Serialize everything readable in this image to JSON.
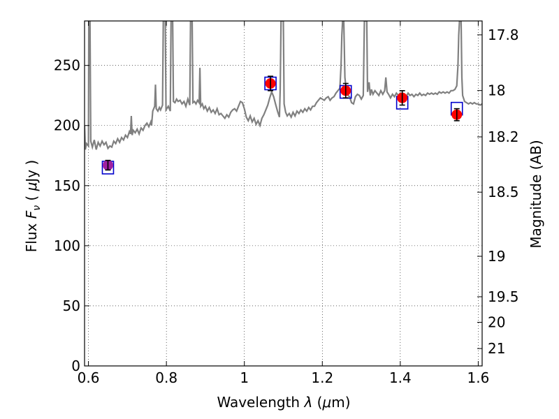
{
  "chart_data": {
    "type": "scatter",
    "xlabel": "Wavelength  λ (μm)",
    "ylabel": "Flux  F_ν  ( μJy )",
    "ylabel_right": "Magnitude (AB)",
    "xlim": [
      0.59,
      1.61
    ],
    "ylim": [
      0,
      287
    ],
    "grid": true,
    "x_ticks": [
      0.6,
      0.8,
      1.0,
      1.2,
      1.4,
      1.6
    ],
    "x_tick_labels": [
      "0.6",
      "0.8",
      "1",
      "1.2",
      "1.4",
      "1.6"
    ],
    "y_ticks": [
      0,
      50,
      100,
      150,
      200,
      250
    ],
    "y_tick_labels": [
      "0",
      "50",
      "100",
      "150",
      "200",
      "250"
    ],
    "right_ticks_mag": [
      17.8,
      18,
      18.2,
      18.5,
      19,
      19.5,
      20,
      21
    ],
    "right_tick_labels": [
      "17.8",
      "18",
      "18.2",
      "18.5",
      "19",
      "19.5",
      "20",
      "21"
    ],
    "colors": {
      "spectrum": "#808080",
      "observed": "#ff0000",
      "observed_first": "#a020a0",
      "model_box": "#0000cc",
      "errorbar": "#000000"
    },
    "spectrum": [
      [
        0.59,
        200
      ],
      [
        0.592,
        180
      ],
      [
        0.595,
        185
      ],
      [
        0.6,
        183
      ],
      [
        0.601,
        287
      ],
      [
        0.604,
        287
      ],
      [
        0.606,
        187
      ],
      [
        0.61,
        182
      ],
      [
        0.615,
        188
      ],
      [
        0.62,
        180
      ],
      [
        0.625,
        186
      ],
      [
        0.63,
        183
      ],
      [
        0.635,
        187
      ],
      [
        0.64,
        184
      ],
      [
        0.645,
        186
      ],
      [
        0.65,
        181
      ],
      [
        0.655,
        183
      ],
      [
        0.66,
        182
      ],
      [
        0.665,
        187
      ],
      [
        0.67,
        185
      ],
      [
        0.675,
        189
      ],
      [
        0.68,
        186
      ],
      [
        0.685,
        190
      ],
      [
        0.69,
        188
      ],
      [
        0.695,
        192
      ],
      [
        0.7,
        190
      ],
      [
        0.705,
        195
      ],
      [
        0.708,
        193
      ],
      [
        0.71,
        208
      ],
      [
        0.712,
        192
      ],
      [
        0.715,
        196
      ],
      [
        0.72,
        194
      ],
      [
        0.725,
        197
      ],
      [
        0.73,
        193
      ],
      [
        0.735,
        198
      ],
      [
        0.74,
        196
      ],
      [
        0.745,
        200
      ],
      [
        0.75,
        202
      ],
      [
        0.755,
        199
      ],
      [
        0.76,
        203
      ],
      [
        0.762,
        200
      ],
      [
        0.765,
        212
      ],
      [
        0.77,
        216
      ],
      [
        0.772,
        234
      ],
      [
        0.774,
        214
      ],
      [
        0.778,
        212
      ],
      [
        0.782,
        215
      ],
      [
        0.785,
        213
      ],
      [
        0.79,
        217
      ],
      [
        0.792,
        287
      ],
      [
        0.797,
        287
      ],
      [
        0.799,
        213
      ],
      [
        0.805,
        216
      ],
      [
        0.81,
        212
      ],
      [
        0.812,
        287
      ],
      [
        0.816,
        287
      ],
      [
        0.818,
        220
      ],
      [
        0.822,
        219
      ],
      [
        0.826,
        222
      ],
      [
        0.83,
        220
      ],
      [
        0.835,
        221
      ],
      [
        0.84,
        218
      ],
      [
        0.845,
        220
      ],
      [
        0.85,
        216
      ],
      [
        0.855,
        222
      ],
      [
        0.86,
        217
      ],
      [
        0.862,
        287
      ],
      [
        0.866,
        287
      ],
      [
        0.868,
        219
      ],
      [
        0.872,
        220
      ],
      [
        0.876,
        218
      ],
      [
        0.88,
        221
      ],
      [
        0.884,
        219
      ],
      [
        0.886,
        248
      ],
      [
        0.888,
        216
      ],
      [
        0.892,
        218
      ],
      [
        0.896,
        214
      ],
      [
        0.9,
        216
      ],
      [
        0.905,
        212
      ],
      [
        0.91,
        215
      ],
      [
        0.915,
        211
      ],
      [
        0.92,
        213
      ],
      [
        0.925,
        210
      ],
      [
        0.93,
        214
      ],
      [
        0.935,
        209
      ],
      [
        0.94,
        210
      ],
      [
        0.945,
        208
      ],
      [
        0.95,
        206
      ],
      [
        0.955,
        209
      ],
      [
        0.96,
        207
      ],
      [
        0.965,
        211
      ],
      [
        0.97,
        213
      ],
      [
        0.975,
        214
      ],
      [
        0.98,
        212
      ],
      [
        0.985,
        216
      ],
      [
        0.99,
        220
      ],
      [
        0.995,
        219
      ],
      [
        1.0,
        214
      ],
      [
        1.005,
        207
      ],
      [
        1.01,
        204
      ],
      [
        1.015,
        208
      ],
      [
        1.02,
        203
      ],
      [
        1.025,
        206
      ],
      [
        1.03,
        201
      ],
      [
        1.035,
        204
      ],
      [
        1.04,
        200
      ],
      [
        1.045,
        206
      ],
      [
        1.05,
        209
      ],
      [
        1.055,
        213
      ],
      [
        1.06,
        217
      ],
      [
        1.065,
        223
      ],
      [
        1.07,
        228
      ],
      [
        1.075,
        224
      ],
      [
        1.08,
        218
      ],
      [
        1.085,
        212
      ],
      [
        1.09,
        207
      ],
      [
        1.092,
        230
      ],
      [
        1.094,
        287
      ],
      [
        1.1,
        287
      ],
      [
        1.102,
        218
      ],
      [
        1.106,
        211
      ],
      [
        1.11,
        208
      ],
      [
        1.115,
        210
      ],
      [
        1.12,
        207
      ],
      [
        1.125,
        211
      ],
      [
        1.13,
        208
      ],
      [
        1.135,
        212
      ],
      [
        1.14,
        210
      ],
      [
        1.145,
        213
      ],
      [
        1.15,
        211
      ],
      [
        1.155,
        214
      ],
      [
        1.16,
        212
      ],
      [
        1.165,
        215
      ],
      [
        1.17,
        213
      ],
      [
        1.175,
        216
      ],
      [
        1.18,
        216
      ],
      [
        1.185,
        219
      ],
      [
        1.19,
        221
      ],
      [
        1.195,
        223
      ],
      [
        1.2,
        222
      ],
      [
        1.205,
        221
      ],
      [
        1.21,
        223
      ],
      [
        1.215,
        224
      ],
      [
        1.22,
        221
      ],
      [
        1.225,
        223
      ],
      [
        1.23,
        224
      ],
      [
        1.235,
        227
      ],
      [
        1.24,
        229
      ],
      [
        1.245,
        231
      ],
      [
        1.248,
        250
      ],
      [
        1.25,
        275
      ],
      [
        1.252,
        287
      ],
      [
        1.255,
        287
      ],
      [
        1.258,
        240
      ],
      [
        1.262,
        228
      ],
      [
        1.266,
        225
      ],
      [
        1.27,
        224
      ],
      [
        1.275,
        219
      ],
      [
        1.28,
        218
      ],
      [
        1.285,
        224
      ],
      [
        1.29,
        226
      ],
      [
        1.295,
        225
      ],
      [
        1.3,
        222
      ],
      [
        1.305,
        225
      ],
      [
        1.308,
        287
      ],
      [
        1.314,
        287
      ],
      [
        1.316,
        228
      ],
      [
        1.32,
        236
      ],
      [
        1.323,
        225
      ],
      [
        1.326,
        230
      ],
      [
        1.33,
        226
      ],
      [
        1.335,
        229
      ],
      [
        1.34,
        227
      ],
      [
        1.345,
        225
      ],
      [
        1.35,
        229
      ],
      [
        1.355,
        226
      ],
      [
        1.36,
        229
      ],
      [
        1.363,
        240
      ],
      [
        1.366,
        228
      ],
      [
        1.37,
        226
      ],
      [
        1.375,
        223
      ],
      [
        1.38,
        226
      ],
      [
        1.385,
        224
      ],
      [
        1.39,
        227
      ],
      [
        1.395,
        225
      ],
      [
        1.4,
        227
      ],
      [
        1.405,
        225
      ],
      [
        1.41,
        226
      ],
      [
        1.415,
        224
      ],
      [
        1.42,
        227
      ],
      [
        1.425,
        225
      ],
      [
        1.43,
        226
      ],
      [
        1.435,
        224
      ],
      [
        1.44,
        226
      ],
      [
        1.445,
        225
      ],
      [
        1.45,
        227
      ],
      [
        1.455,
        225
      ],
      [
        1.46,
        226
      ],
      [
        1.465,
        225
      ],
      [
        1.47,
        227
      ],
      [
        1.475,
        226
      ],
      [
        1.48,
        227
      ],
      [
        1.485,
        226
      ],
      [
        1.49,
        227
      ],
      [
        1.495,
        226
      ],
      [
        1.5,
        228
      ],
      [
        1.505,
        227
      ],
      [
        1.51,
        228
      ],
      [
        1.515,
        227
      ],
      [
        1.52,
        228
      ],
      [
        1.525,
        227
      ],
      [
        1.53,
        229
      ],
      [
        1.535,
        229
      ],
      [
        1.54,
        230
      ],
      [
        1.545,
        233
      ],
      [
        1.548,
        250
      ],
      [
        1.55,
        275
      ],
      [
        1.552,
        287
      ],
      [
        1.556,
        287
      ],
      [
        1.558,
        240
      ],
      [
        1.56,
        225
      ],
      [
        1.565,
        220
      ],
      [
        1.57,
        219
      ],
      [
        1.575,
        218
      ],
      [
        1.58,
        219
      ],
      [
        1.585,
        218
      ],
      [
        1.59,
        219
      ],
      [
        1.595,
        218
      ],
      [
        1.6,
        218
      ],
      [
        1.605,
        217
      ],
      [
        1.61,
        218
      ]
    ],
    "observed": [
      {
        "x": 0.65,
        "y": 167,
        "err": 4
      },
      {
        "x": 1.067,
        "y": 235,
        "err": 6
      },
      {
        "x": 1.26,
        "y": 229,
        "err": 6
      },
      {
        "x": 1.405,
        "y": 223,
        "err": 6
      },
      {
        "x": 1.545,
        "y": 209,
        "err": 5
      }
    ],
    "model": [
      {
        "x": 0.65,
        "y": 165
      },
      {
        "x": 1.067,
        "y": 235
      },
      {
        "x": 1.26,
        "y": 228
      },
      {
        "x": 1.405,
        "y": 219
      },
      {
        "x": 1.545,
        "y": 214
      }
    ]
  }
}
